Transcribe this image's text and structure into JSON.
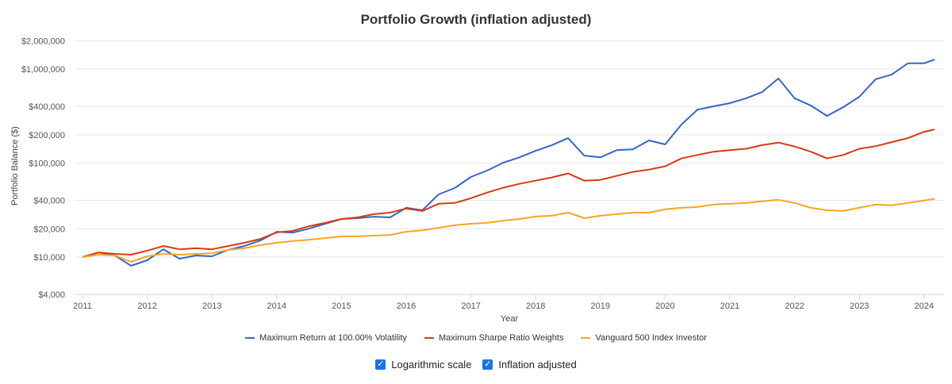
{
  "chart_data": {
    "type": "line",
    "title": "Portfolio Growth (inflation adjusted)",
    "xlabel": "Year",
    "ylabel": "Portfolio Balance ($)",
    "yscale": "log",
    "ylim": [
      4000,
      2000000
    ],
    "xlim": [
      2011,
      2024.2
    ],
    "y_ticks": [
      4000,
      10000,
      20000,
      40000,
      100000,
      200000,
      400000,
      1000000,
      2000000
    ],
    "y_tick_labels": [
      "$4,000",
      "$10,000",
      "$20,000",
      "$40,000",
      "$100,000",
      "$200,000",
      "$400,000",
      "$1,000,000",
      "$2,000,000"
    ],
    "x_ticks": [
      2011,
      2012,
      2013,
      2014,
      2015,
      2016,
      2017,
      2018,
      2019,
      2020,
      2021,
      2022,
      2023,
      2024
    ],
    "x_tick_labels": [
      "2011",
      "2012",
      "2013",
      "2014",
      "2015",
      "2016",
      "2017",
      "2018",
      "2019",
      "2020",
      "2021",
      "2022",
      "2023",
      "2024"
    ],
    "grid": true,
    "legend_position": "bottom",
    "x": [
      2011.0,
      2011.25,
      2011.5,
      2011.75,
      2012.0,
      2012.25,
      2012.5,
      2012.75,
      2013.0,
      2013.25,
      2013.5,
      2013.75,
      2014.0,
      2014.25,
      2014.5,
      2014.75,
      2015.0,
      2015.25,
      2015.5,
      2015.75,
      2016.0,
      2016.25,
      2016.5,
      2016.75,
      2017.0,
      2017.25,
      2017.5,
      2017.75,
      2018.0,
      2018.25,
      2018.5,
      2018.75,
      2019.0,
      2019.25,
      2019.5,
      2019.75,
      2020.0,
      2020.25,
      2020.5,
      2020.75,
      2021.0,
      2021.25,
      2021.5,
      2021.75,
      2022.0,
      2022.25,
      2022.5,
      2022.75,
      2023.0,
      2023.25,
      2023.5,
      2023.75,
      2024.0,
      2024.16
    ],
    "series": [
      {
        "name": "Maximum Return at 100.00% Volatility",
        "color": "#3366cc",
        "values": [
          10000,
          11200,
          10400,
          8070,
          9250,
          12100,
          9600,
          10400,
          10200,
          11900,
          13100,
          15000,
          18600,
          18200,
          20100,
          22600,
          25400,
          25900,
          26900,
          26400,
          33400,
          31500,
          46400,
          54200,
          71200,
          83200,
          101000,
          115000,
          135000,
          155000,
          184000,
          120000,
          115000,
          137000,
          140000,
          174000,
          158000,
          256000,
          370000,
          401000,
          434000,
          488000,
          570000,
          794000,
          488000,
          409000,
          317000,
          393000,
          507000,
          778000,
          875000,
          1150000,
          1150000,
          1260000
        ]
      },
      {
        "name": "Maximum Sharpe Ratio Weights",
        "color": "#dc3912",
        "values": [
          10000,
          11200,
          10800,
          10600,
          11700,
          13100,
          12100,
          12400,
          12100,
          13100,
          14200,
          15600,
          18300,
          19000,
          21300,
          23100,
          25400,
          26400,
          28600,
          29700,
          32800,
          30900,
          36900,
          37600,
          42300,
          48500,
          54600,
          60100,
          65000,
          70300,
          77500,
          65000,
          66300,
          73000,
          80500,
          85300,
          92300,
          112000,
          122000,
          132000,
          137000,
          142000,
          155000,
          165000,
          150000,
          132000,
          112000,
          122000,
          142000,
          151000,
          167000,
          184000,
          215000,
          228000
        ]
      },
      {
        "name": "Vanguard 500 Index Investor",
        "color": "#f5a623",
        "values": [
          10000,
          10600,
          10400,
          8900,
          10200,
          10800,
          10600,
          10800,
          11000,
          11900,
          12400,
          13400,
          14200,
          14800,
          15300,
          15900,
          16600,
          16600,
          16900,
          17200,
          18600,
          19300,
          20500,
          21800,
          22600,
          23100,
          24400,
          25400,
          27000,
          27500,
          29700,
          25900,
          27500,
          28600,
          29700,
          29700,
          32200,
          33400,
          34100,
          36200,
          36900,
          37600,
          39100,
          40700,
          37600,
          33400,
          31500,
          30900,
          33400,
          36200,
          35500,
          37600,
          39900,
          41500
        ]
      }
    ]
  },
  "legend": {
    "items": [
      {
        "label": "Maximum Return at 100.00% Volatility",
        "color": "#3366cc"
      },
      {
        "label": "Maximum Sharpe Ratio Weights",
        "color": "#dc3912"
      },
      {
        "label": "Vanguard 500 Index Investor",
        "color": "#f5a623"
      }
    ]
  },
  "options": {
    "log_scale_label": "Logarithmic scale",
    "log_scale_checked": true,
    "inflation_label": "Inflation adjusted",
    "inflation_checked": true,
    "check_glyph": "✓"
  }
}
